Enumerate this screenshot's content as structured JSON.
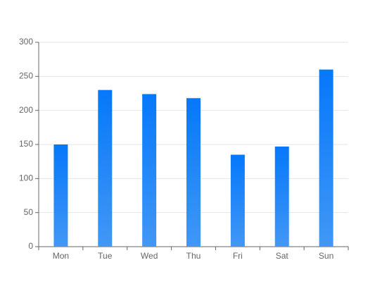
{
  "chart_data": {
    "type": "bar",
    "categories": [
      "Mon",
      "Tue",
      "Wed",
      "Thu",
      "Fri",
      "Sat",
      "Sun"
    ],
    "values": [
      150,
      230,
      224,
      218,
      135,
      147,
      260
    ],
    "gradient": [
      "#0678fb",
      "#4197f5"
    ],
    "ylim": [
      0,
      300
    ],
    "yticks": [
      0,
      50,
      100,
      150,
      200,
      250,
      300
    ],
    "grid": true
  }
}
